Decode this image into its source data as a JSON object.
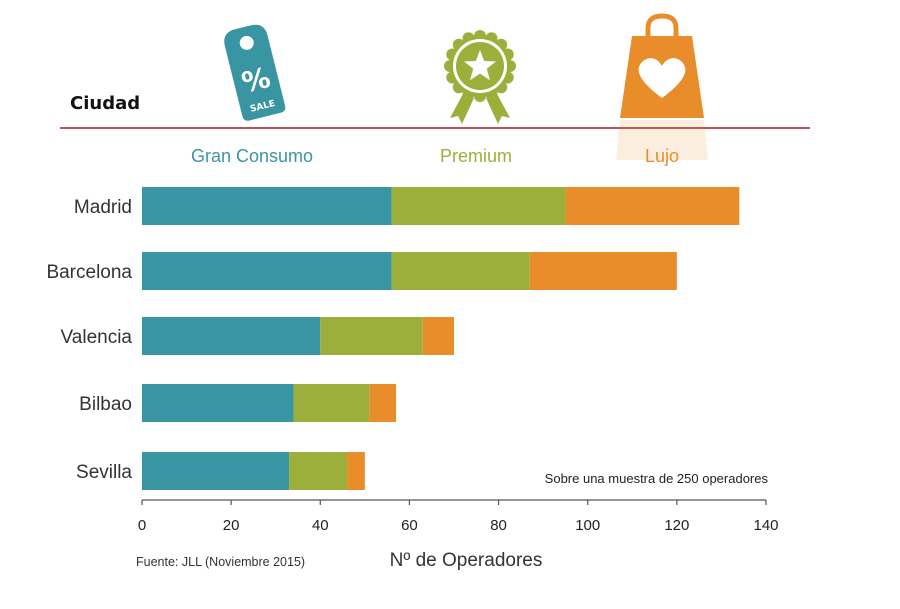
{
  "header": {
    "title": "Ciudad",
    "icons": [
      {
        "name": "sale-tag-icon",
        "text": "%",
        "subtext": "SALE",
        "color": "#3a95a3"
      },
      {
        "name": "award-star-icon",
        "color": "#9caf3b"
      },
      {
        "name": "shopping-bag-heart-icon",
        "color": "#e88d2a"
      }
    ],
    "rule_color": "#c0505a"
  },
  "chart_data": {
    "type": "bar",
    "orientation": "horizontal",
    "stacked": true,
    "categories": [
      "Madrid",
      "Barcelona",
      "Valencia",
      "Bilbao",
      "Sevilla"
    ],
    "series": [
      {
        "name": "Gran Consumo",
        "color": "#3a95a3",
        "values": [
          56,
          56,
          40,
          34,
          33
        ]
      },
      {
        "name": "Premium",
        "color": "#9caf3b",
        "values": [
          39,
          31,
          23,
          17,
          13
        ]
      },
      {
        "name": "Lujo",
        "color": "#e88d2a",
        "values": [
          39,
          33,
          7,
          6,
          4
        ]
      }
    ],
    "xlim": [
      0,
      140
    ],
    "xticks": [
      "0",
      "20",
      "40",
      "60",
      "80",
      "100",
      "120",
      "140"
    ],
    "xlabel": "Nº de Operadores",
    "ylabel": "",
    "legend_position": "top",
    "grid": false,
    "annotation": "Sobre una muestra de 250 operadores",
    "source": "Fuente: JLL (Noviembre 2015)"
  }
}
